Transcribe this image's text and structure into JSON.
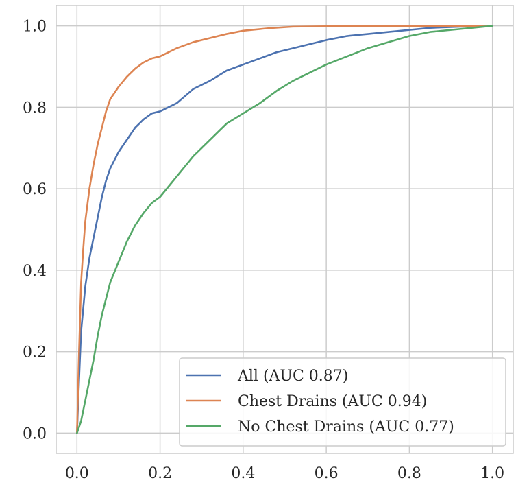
{
  "chart_data": {
    "type": "line",
    "title": "",
    "xlabel": "",
    "ylabel": "",
    "xlim": [
      -0.05,
      1.05
    ],
    "ylim": [
      -0.05,
      1.05
    ],
    "x_ticks": [
      0.0,
      0.2,
      0.4,
      0.6,
      0.8,
      1.0
    ],
    "y_ticks": [
      0.0,
      0.2,
      0.4,
      0.6,
      0.8,
      1.0
    ],
    "x_tick_labels": [
      "0.0",
      "0.2",
      "0.4",
      "0.6",
      "0.8",
      "1.0"
    ],
    "y_tick_labels": [
      "0.0",
      "0.2",
      "0.4",
      "0.6",
      "0.8",
      "1.0"
    ],
    "grid": true,
    "legend_position": "lower-right",
    "series": [
      {
        "name": "All (AUC 0.87)",
        "color": "#4c72b0",
        "points": [
          [
            0.0,
            0.0
          ],
          [
            0.005,
            0.13
          ],
          [
            0.01,
            0.25
          ],
          [
            0.02,
            0.36
          ],
          [
            0.03,
            0.43
          ],
          [
            0.04,
            0.48
          ],
          [
            0.05,
            0.53
          ],
          [
            0.06,
            0.58
          ],
          [
            0.07,
            0.62
          ],
          [
            0.08,
            0.65
          ],
          [
            0.1,
            0.69
          ],
          [
            0.12,
            0.72
          ],
          [
            0.14,
            0.75
          ],
          [
            0.16,
            0.77
          ],
          [
            0.18,
            0.785
          ],
          [
            0.2,
            0.79
          ],
          [
            0.24,
            0.81
          ],
          [
            0.28,
            0.845
          ],
          [
            0.32,
            0.865
          ],
          [
            0.36,
            0.89
          ],
          [
            0.4,
            0.905
          ],
          [
            0.44,
            0.92
          ],
          [
            0.48,
            0.935
          ],
          [
            0.52,
            0.945
          ],
          [
            0.56,
            0.955
          ],
          [
            0.6,
            0.965
          ],
          [
            0.65,
            0.975
          ],
          [
            0.7,
            0.98
          ],
          [
            0.75,
            0.985
          ],
          [
            0.8,
            0.99
          ],
          [
            0.85,
            0.995
          ],
          [
            0.9,
            0.997
          ],
          [
            0.95,
            0.999
          ],
          [
            1.0,
            1.0
          ]
        ]
      },
      {
        "name": "Chest Drains (AUC 0.94)",
        "color": "#dd8452",
        "points": [
          [
            0.0,
            0.0
          ],
          [
            0.005,
            0.2
          ],
          [
            0.01,
            0.37
          ],
          [
            0.015,
            0.45
          ],
          [
            0.02,
            0.52
          ],
          [
            0.03,
            0.6
          ],
          [
            0.04,
            0.66
          ],
          [
            0.05,
            0.71
          ],
          [
            0.06,
            0.75
          ],
          [
            0.07,
            0.79
          ],
          [
            0.08,
            0.82
          ],
          [
            0.1,
            0.85
          ],
          [
            0.12,
            0.875
          ],
          [
            0.14,
            0.895
          ],
          [
            0.16,
            0.91
          ],
          [
            0.18,
            0.92
          ],
          [
            0.2,
            0.925
          ],
          [
            0.24,
            0.945
          ],
          [
            0.28,
            0.96
          ],
          [
            0.32,
            0.97
          ],
          [
            0.36,
            0.98
          ],
          [
            0.4,
            0.988
          ],
          [
            0.46,
            0.994
          ],
          [
            0.52,
            0.998
          ],
          [
            0.6,
            0.999
          ],
          [
            0.8,
            1.0
          ],
          [
            1.0,
            1.0
          ]
        ]
      },
      {
        "name": "No Chest Drains (AUC 0.77)",
        "color": "#55a868",
        "points": [
          [
            0.0,
            0.0
          ],
          [
            0.01,
            0.03
          ],
          [
            0.02,
            0.08
          ],
          [
            0.03,
            0.13
          ],
          [
            0.04,
            0.18
          ],
          [
            0.05,
            0.24
          ],
          [
            0.06,
            0.29
          ],
          [
            0.07,
            0.33
          ],
          [
            0.08,
            0.37
          ],
          [
            0.1,
            0.42
          ],
          [
            0.12,
            0.47
          ],
          [
            0.14,
            0.51
          ],
          [
            0.16,
            0.54
          ],
          [
            0.18,
            0.565
          ],
          [
            0.2,
            0.58
          ],
          [
            0.24,
            0.63
          ],
          [
            0.28,
            0.68
          ],
          [
            0.32,
            0.72
          ],
          [
            0.36,
            0.76
          ],
          [
            0.4,
            0.785
          ],
          [
            0.44,
            0.81
          ],
          [
            0.48,
            0.84
          ],
          [
            0.52,
            0.865
          ],
          [
            0.56,
            0.885
          ],
          [
            0.6,
            0.905
          ],
          [
            0.65,
            0.925
          ],
          [
            0.7,
            0.945
          ],
          [
            0.75,
            0.96
          ],
          [
            0.8,
            0.975
          ],
          [
            0.85,
            0.985
          ],
          [
            0.9,
            0.99
          ],
          [
            0.95,
            0.995
          ],
          [
            1.0,
            1.0
          ]
        ]
      }
    ]
  }
}
